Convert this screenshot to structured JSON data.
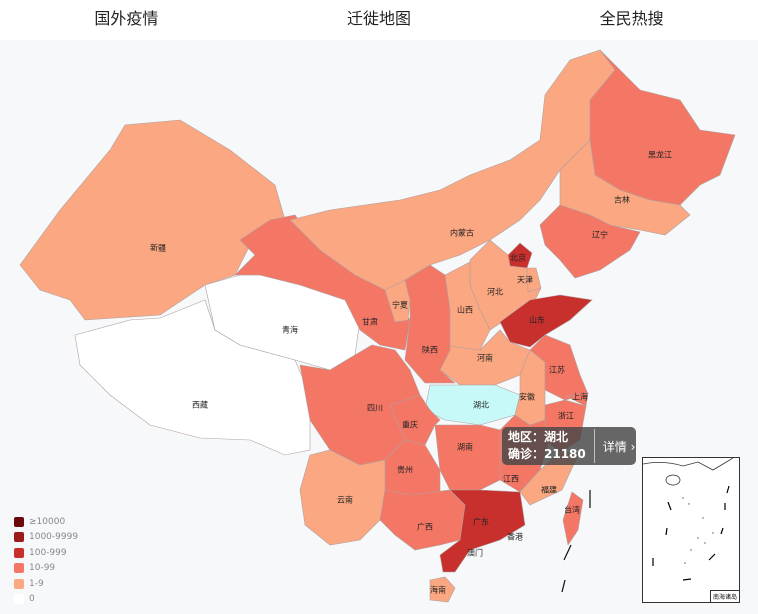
{
  "header": {
    "tabs": [
      {
        "label": "国外疫情"
      },
      {
        "label": "迁徙地图"
      },
      {
        "label": "全民热搜"
      }
    ]
  },
  "legend": {
    "items": [
      {
        "label": "≥10000",
        "color": "#6b0a0c"
      },
      {
        "label": "1000-9999",
        "color": "#9b1a1a"
      },
      {
        "label": "100-999",
        "color": "#c8302e"
      },
      {
        "label": "10-99",
        "color": "#f47765"
      },
      {
        "label": "1-9",
        "color": "#fba781"
      },
      {
        "label": "0",
        "color": "#ffffff"
      }
    ]
  },
  "highlight_color": "#c7f9f9",
  "provinces": [
    {
      "name": "新疆",
      "level": 4
    },
    {
      "name": "西藏",
      "level": 5
    },
    {
      "name": "青海",
      "level": 5
    },
    {
      "name": "甘肃",
      "level": 3
    },
    {
      "name": "内蒙古",
      "level": 4
    },
    {
      "name": "黑龙江",
      "level": 3
    },
    {
      "name": "吉林",
      "level": 4
    },
    {
      "name": "辽宁",
      "level": 3
    },
    {
      "name": "北京",
      "level": 2
    },
    {
      "name": "天津",
      "level": 4
    },
    {
      "name": "河北",
      "level": 4
    },
    {
      "name": "山西",
      "level": 4
    },
    {
      "name": "山东",
      "level": 2
    },
    {
      "name": "河南",
      "level": 4
    },
    {
      "name": "宁夏",
      "level": 4
    },
    {
      "name": "陕西",
      "level": 3
    },
    {
      "name": "湖北",
      "level": 0,
      "highlighted": true
    },
    {
      "name": "安徽",
      "level": 4
    },
    {
      "name": "江苏",
      "level": 3
    },
    {
      "name": "上海",
      "level": 3
    },
    {
      "name": "浙江",
      "level": 3
    },
    {
      "name": "江西",
      "level": 3
    },
    {
      "name": "福建",
      "level": 4
    },
    {
      "name": "湖南",
      "level": 3
    },
    {
      "name": "重庆",
      "level": 3
    },
    {
      "name": "四川",
      "level": 3
    },
    {
      "name": "贵州",
      "level": 3
    },
    {
      "name": "云南",
      "level": 4
    },
    {
      "name": "广西",
      "level": 3
    },
    {
      "name": "广东",
      "level": 2
    },
    {
      "name": "海南",
      "level": 4
    },
    {
      "name": "台湾",
      "level": 3
    },
    {
      "name": "香港",
      "level": 5
    },
    {
      "name": "澳门",
      "level": 5
    }
  ],
  "tooltip": {
    "region": "地区：湖北",
    "confirmed": "确诊：21180",
    "detail": "详情 ›"
  },
  "inset": {
    "label": "南海诸岛"
  }
}
